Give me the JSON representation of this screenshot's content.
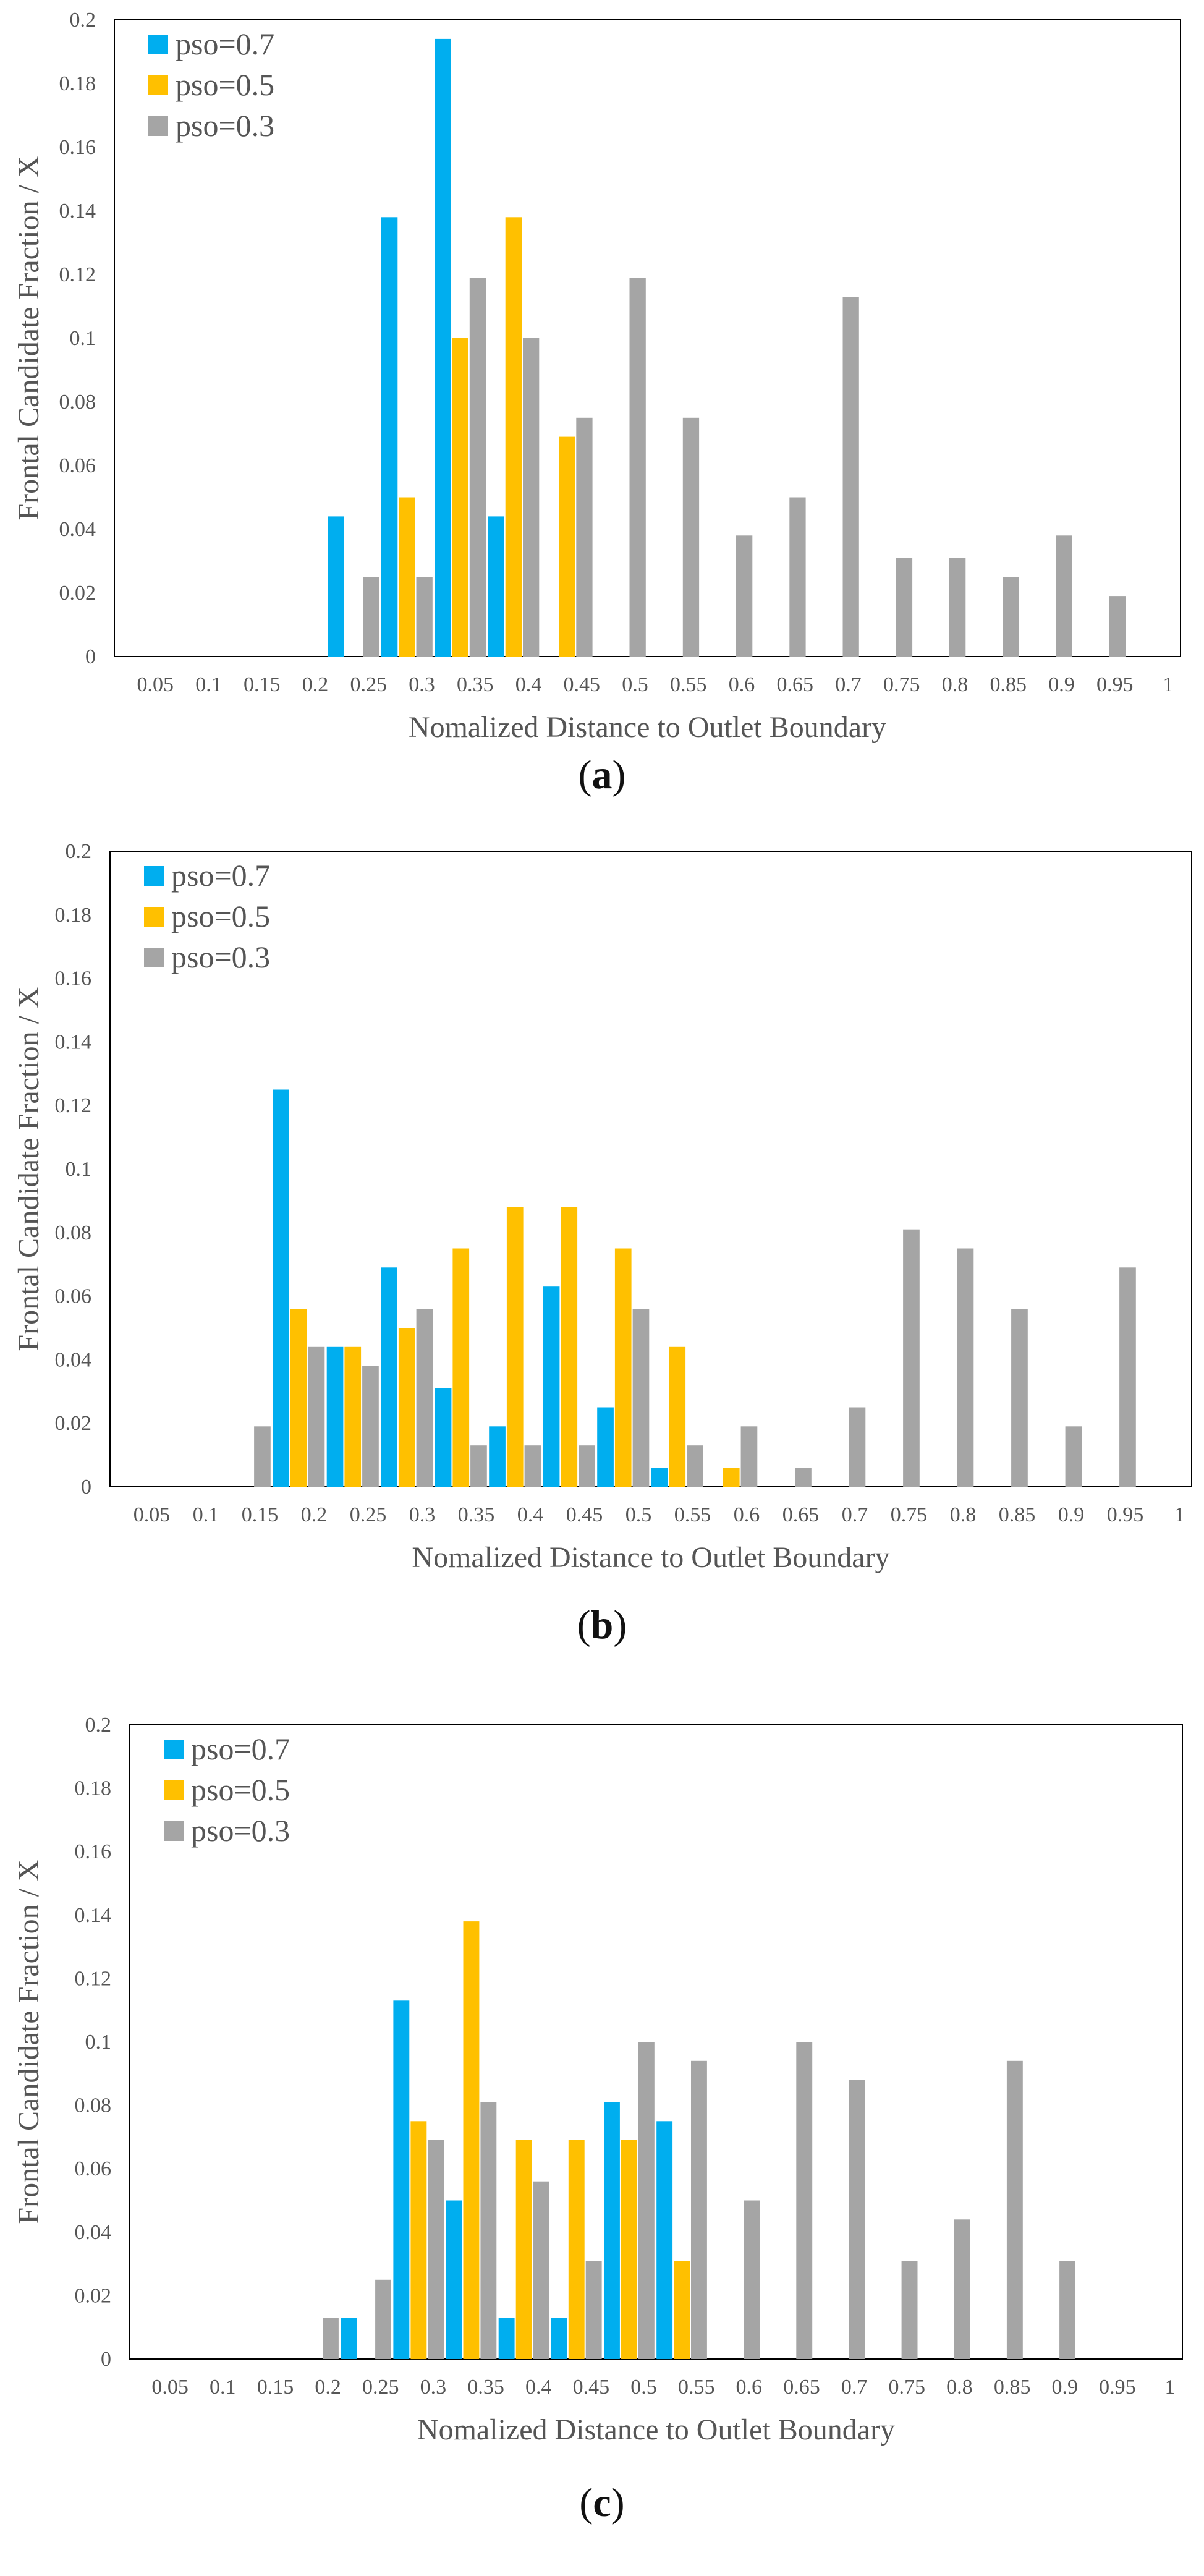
{
  "chart_data": [
    {
      "type": "bar",
      "panel_label": "a",
      "caption_open": "(",
      "caption_close": ")",
      "xlabel": "Nomalized Distance to Outlet Boundary",
      "ylabel": "Frontal Candidate Fraction / X",
      "ylim": [
        0,
        0.2
      ],
      "yticks": [
        "0",
        "0.02",
        "0.04",
        "0.06",
        "0.08",
        "0.1",
        "0.12",
        "0.14",
        "0.16",
        "0.18",
        "0.2"
      ],
      "categories": [
        "0.05",
        "0.1",
        "0.15",
        "0.2",
        "0.25",
        "0.3",
        "0.35",
        "0.4",
        "0.45",
        "0.5",
        "0.55",
        "0.6",
        "0.65",
        "0.7",
        "0.75",
        "0.8",
        "0.85",
        "0.9",
        "0.95",
        "1"
      ],
      "legend_position": "top-left",
      "series": [
        {
          "name": "pso=0.7",
          "color": "#00AEEF",
          "values": [
            0,
            0,
            0,
            0,
            0.044,
            0.138,
            0.194,
            0.044,
            0,
            0,
            0,
            0,
            0,
            0,
            0,
            0,
            0,
            0,
            0,
            0
          ]
        },
        {
          "name": "pso=0.5",
          "color": "#FFC000",
          "values": [
            0,
            0,
            0,
            0,
            0,
            0.05,
            0.1,
            0.138,
            0.069,
            0,
            0,
            0,
            0,
            0,
            0,
            0,
            0,
            0,
            0,
            0
          ]
        },
        {
          "name": "pso=0.3",
          "color": "#A5A5A5",
          "values": [
            0,
            0,
            0,
            0,
            0.025,
            0.025,
            0.119,
            0.1,
            0.075,
            0.119,
            0.075,
            0.038,
            0.05,
            0.113,
            0.031,
            0.031,
            0.025,
            0.038,
            0.019,
            0
          ]
        }
      ]
    },
    {
      "type": "bar",
      "panel_label": "b",
      "caption_open": "(",
      "caption_close": ")",
      "xlabel": "Nomalized Distance to Outlet Boundary",
      "ylabel": "Frontal Candidate Fraction / X",
      "ylim": [
        0,
        0.2
      ],
      "yticks": [
        "0",
        "0.02",
        "0.04",
        "0.06",
        "0.08",
        "0.1",
        "0.12",
        "0.14",
        "0.16",
        "0.18",
        "0.2"
      ],
      "categories": [
        "0.05",
        "0.1",
        "0.15",
        "0.2",
        "0.25",
        "0.3",
        "0.35",
        "0.4",
        "0.45",
        "0.5",
        "0.55",
        "0.6",
        "0.65",
        "0.7",
        "0.75",
        "0.8",
        "0.85",
        "0.9",
        "0.95",
        "1"
      ],
      "legend_position": "top-left",
      "series": [
        {
          "name": "pso=0.7",
          "color": "#00AEEF",
          "values": [
            0,
            0,
            0,
            0.125,
            0.044,
            0.069,
            0.031,
            0.019,
            0.063,
            0.025,
            0.006,
            0,
            0,
            0,
            0,
            0,
            0,
            0,
            0,
            0
          ]
        },
        {
          "name": "pso=0.5",
          "color": "#FFC000",
          "values": [
            0,
            0,
            0,
            0.056,
            0.044,
            0.05,
            0.075,
            0.088,
            0.088,
            0.075,
            0.044,
            0.006,
            0,
            0,
            0,
            0,
            0,
            0,
            0,
            0
          ]
        },
        {
          "name": "pso=0.3",
          "color": "#A5A5A5",
          "values": [
            0,
            0,
            0.019,
            0.044,
            0.038,
            0.056,
            0.013,
            0.013,
            0.013,
            0.056,
            0.013,
            0.019,
            0.006,
            0.025,
            0.081,
            0.075,
            0.056,
            0.019,
            0.069,
            0
          ]
        }
      ]
    },
    {
      "type": "bar",
      "panel_label": "c",
      "caption_open": "(",
      "caption_close": ")",
      "xlabel": "Nomalized Distance to Outlet Boundary",
      "ylabel": "Frontal Candidate Fraction / X",
      "ylim": [
        0,
        0.2
      ],
      "yticks": [
        "0",
        "0.02",
        "0.04",
        "0.06",
        "0.08",
        "0.1",
        "0.12",
        "0.14",
        "0.16",
        "0.18",
        "0.2"
      ],
      "categories": [
        "0.05",
        "0.1",
        "0.15",
        "0.2",
        "0.25",
        "0.3",
        "0.35",
        "0.4",
        "0.45",
        "0.5",
        "0.55",
        "0.6",
        "0.65",
        "0.7",
        "0.75",
        "0.8",
        "0.85",
        "0.9",
        "0.95",
        "1"
      ],
      "legend_position": "top-left",
      "series": [
        {
          "name": "pso=0.7",
          "color": "#00AEEF",
          "values": [
            0,
            0,
            0,
            0,
            0.013,
            0.113,
            0.05,
            0.013,
            0.013,
            0.081,
            0.075,
            0,
            0,
            0,
            0,
            0,
            0,
            0,
            0,
            0
          ]
        },
        {
          "name": "pso=0.5",
          "color": "#FFC000",
          "values": [
            0,
            0,
            0,
            0,
            0,
            0.075,
            0.138,
            0.069,
            0.069,
            0.069,
            0.031,
            0,
            0,
            0,
            0,
            0,
            0,
            0,
            0,
            0
          ]
        },
        {
          "name": "pso=0.3",
          "color": "#A5A5A5",
          "values": [
            0,
            0,
            0,
            0.013,
            0.025,
            0.069,
            0.081,
            0.056,
            0.031,
            0.1,
            0.094,
            0.05,
            0.1,
            0.088,
            0.031,
            0.044,
            0.094,
            0.031,
            0,
            0
          ]
        }
      ]
    }
  ]
}
